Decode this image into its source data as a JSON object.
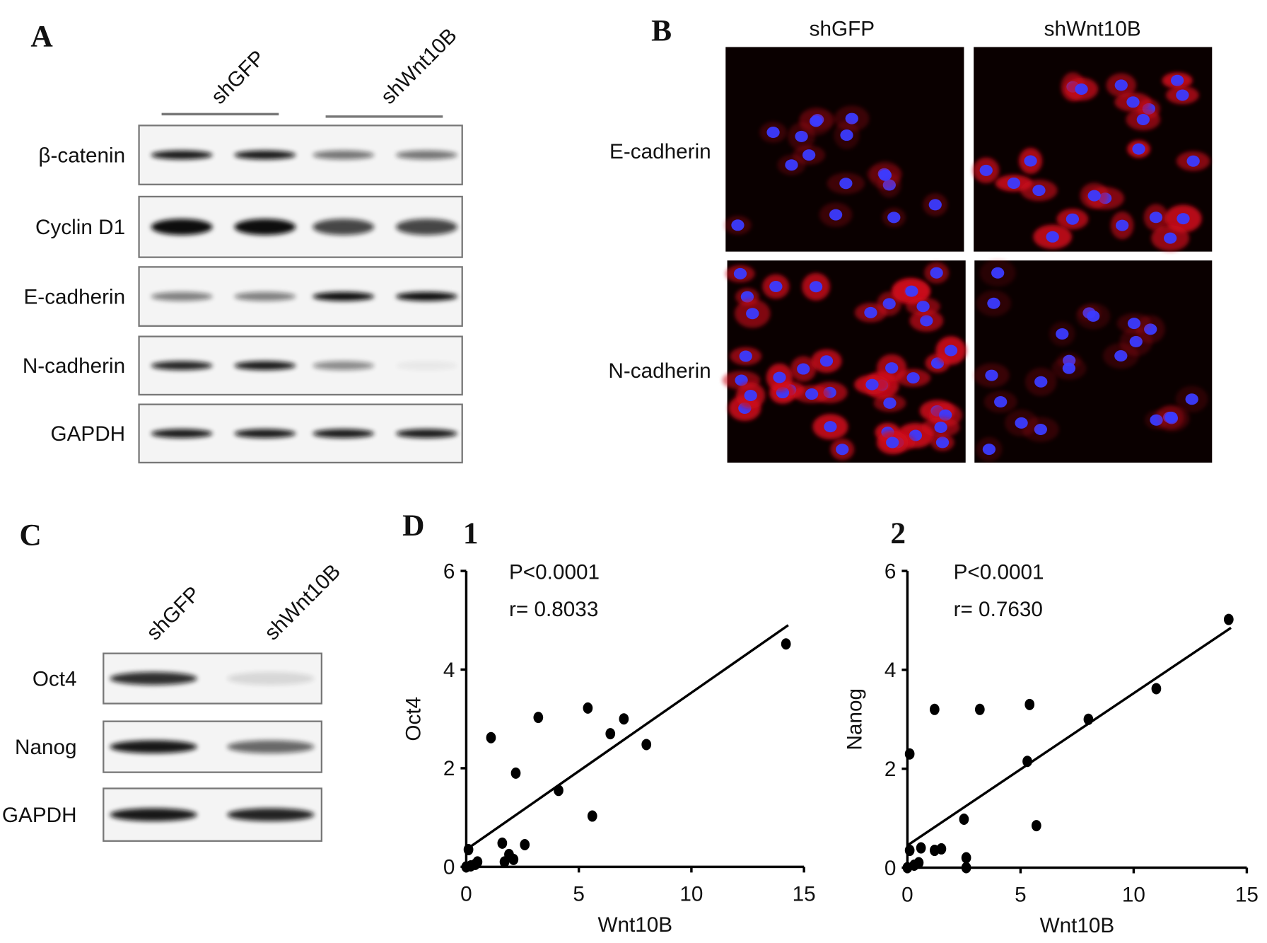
{
  "panels": {
    "a": {
      "label": "A",
      "lanes": [
        "shGFP",
        "shWnt10B"
      ],
      "rows": [
        "β-catenin",
        "Cyclin D1",
        "E-cadherin",
        "N-cadherin",
        "GAPDH"
      ]
    },
    "b": {
      "label": "B",
      "columns": [
        "shGFP",
        "shWnt10B"
      ],
      "rows": [
        "E-cadherin",
        "N-cadherin"
      ]
    },
    "c": {
      "label": "C",
      "lanes": [
        "shGFP",
        "shWnt10B"
      ],
      "rows": [
        "Oct4",
        "Nanog",
        "GAPDH"
      ]
    },
    "d": {
      "label": "D"
    }
  },
  "chart_data": [
    {
      "type": "scatter",
      "title": "1",
      "x_label": "Wnt10B",
      "y_label": "Oct4",
      "annotations": [
        "P<0.0001",
        "r= 0.8033"
      ],
      "x": [
        0.1,
        0,
        0.2,
        0.4,
        0.5,
        1.1,
        1.6,
        1.7,
        1.9,
        2.1,
        2.2,
        2.6,
        3.2,
        4.1,
        5.4,
        5.6,
        6.4,
        7.0,
        8.0,
        14.2
      ],
      "values": [
        0.35,
        0,
        0.02,
        0.05,
        0.1,
        2.62,
        0.48,
        0.1,
        0.25,
        0.15,
        1.9,
        0.45,
        3.03,
        1.55,
        3.22,
        1.03,
        2.7,
        3.0,
        2.48,
        4.52
      ],
      "fit": {
        "x": [
          0,
          14.3
        ],
        "values": [
          0.35,
          4.9
        ]
      },
      "color": "#000000",
      "xlim": [
        0,
        15
      ],
      "xticks": [
        0,
        5,
        10,
        15
      ],
      "ylim": [
        0,
        6
      ],
      "yticks": [
        0,
        2,
        4,
        6
      ]
    },
    {
      "type": "scatter",
      "title": "2",
      "x_label": "Wnt10B",
      "y_label": "Nanog",
      "annotations": [
        "P<0.0001",
        "r= 0.7630"
      ],
      "x": [
        0.1,
        0.1,
        0,
        0.3,
        0.5,
        0.6,
        1.2,
        1.2,
        1.5,
        2.5,
        2.6,
        2.6,
        3.2,
        5.3,
        5.4,
        5.7,
        8.0,
        11.0,
        14.2
      ],
      "values": [
        2.3,
        0.35,
        0,
        0.05,
        0.1,
        0.4,
        3.2,
        0.35,
        0.38,
        0.98,
        0.2,
        0,
        3.2,
        2.15,
        3.3,
        0.85,
        3.0,
        3.62,
        5.02
      ],
      "fit": {
        "x": [
          0,
          14.3
        ],
        "values": [
          0.45,
          4.85
        ]
      },
      "color": "#000000",
      "xlim": [
        0,
        15
      ],
      "xticks": [
        0,
        5,
        10,
        15
      ],
      "ylim": [
        0,
        6
      ],
      "yticks": [
        0,
        2,
        4,
        6
      ]
    }
  ]
}
